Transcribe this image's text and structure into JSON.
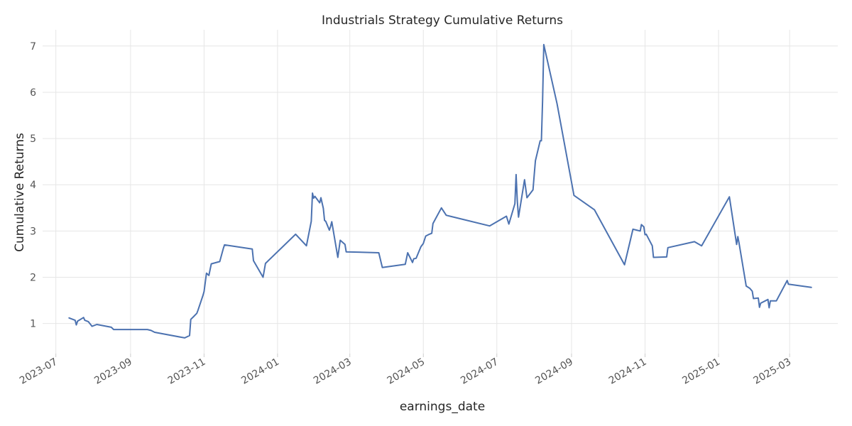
{
  "chart_data": {
    "type": "line",
    "title": "Industrials Strategy Cumulative Returns",
    "xlabel": "earnings_date",
    "ylabel": "Cumulative Returns",
    "xlim": [
      "2023-06-20",
      "2025-04-10"
    ],
    "ylim": [
      0.35,
      7.35
    ],
    "grid": true,
    "x_ticks": [
      "2023-07",
      "2023-09",
      "2023-11",
      "2024-01",
      "2024-03",
      "2024-05",
      "2024-07",
      "2024-09",
      "2024-11",
      "2025-01",
      "2025-03"
    ],
    "y_ticks": [
      1,
      2,
      3,
      4,
      5,
      6,
      7
    ],
    "series": [
      {
        "color": "#4c72b0",
        "x": [
          "2023-07-12",
          "2023-07-17",
          "2023-07-18",
          "2023-07-19",
          "2023-07-24",
          "2023-07-25",
          "2023-07-28",
          "2023-07-31",
          "2023-08-04",
          "2023-08-16",
          "2023-08-18",
          "2023-09-15",
          "2023-09-18",
          "2023-09-21",
          "2023-10-16",
          "2023-10-20",
          "2023-10-21",
          "2023-10-23",
          "2023-10-26",
          "2023-10-27",
          "2023-10-31",
          "2023-11-01",
          "2023-11-03",
          "2023-11-05",
          "2023-11-07",
          "2023-11-14",
          "2023-11-17",
          "2023-11-18",
          "2023-12-11",
          "2023-12-12",
          "2023-12-20",
          "2023-12-22",
          "2024-01-16",
          "2024-01-25",
          "2024-01-29",
          "2024-01-30",
          "2024-01-31",
          "2024-02-01",
          "2024-02-05",
          "2024-02-06",
          "2024-02-08",
          "2024-02-09",
          "2024-02-10",
          "2024-02-13",
          "2024-02-14",
          "2024-02-15",
          "2024-02-20",
          "2024-02-22",
          "2024-02-26",
          "2024-02-27",
          "2024-03-25",
          "2024-03-28",
          "2024-04-16",
          "2024-04-18",
          "2024-04-22",
          "2024-04-23",
          "2024-04-25",
          "2024-04-29",
          "2024-05-01",
          "2024-05-02",
          "2024-05-03",
          "2024-05-06",
          "2024-05-08",
          "2024-05-09",
          "2024-05-16",
          "2024-05-20",
          "2024-06-25",
          "2024-07-09",
          "2024-07-11",
          "2024-07-16",
          "2024-07-17",
          "2024-07-18",
          "2024-07-19",
          "2024-07-24",
          "2024-07-26",
          "2024-07-31",
          "2024-08-01",
          "2024-08-02",
          "2024-08-06",
          "2024-08-07",
          "2024-08-08",
          "2024-08-09",
          "2024-08-20",
          "2024-09-03",
          "2024-09-20",
          "2024-10-15",
          "2024-10-22",
          "2024-10-28",
          "2024-10-29",
          "2024-10-31",
          "2024-11-01",
          "2024-11-02",
          "2024-11-07",
          "2024-11-08",
          "2024-11-19",
          "2024-11-20",
          "2024-12-12",
          "2024-12-18",
          "2025-01-10",
          "2025-01-16",
          "2025-01-17",
          "2025-01-18",
          "2025-01-24",
          "2025-01-27",
          "2025-01-29",
          "2025-01-30",
          "2025-02-03",
          "2025-02-04",
          "2025-02-05",
          "2025-02-11",
          "2025-02-12",
          "2025-02-13",
          "2025-02-18",
          "2025-02-27",
          "2025-02-28",
          "2025-03-19"
        ],
        "values": [
          1.12,
          1.07,
          0.97,
          1.05,
          1.13,
          1.07,
          1.04,
          0.94,
          0.98,
          0.92,
          0.87,
          0.87,
          0.85,
          0.81,
          0.69,
          0.74,
          1.09,
          1.14,
          1.22,
          1.29,
          1.6,
          1.69,
          2.09,
          2.04,
          2.29,
          2.34,
          2.62,
          2.7,
          2.61,
          2.36,
          2.0,
          2.3,
          2.93,
          2.68,
          3.21,
          3.82,
          3.71,
          3.75,
          3.61,
          3.72,
          3.49,
          3.23,
          3.21,
          3.02,
          3.1,
          3.2,
          2.43,
          2.8,
          2.71,
          2.55,
          2.53,
          2.21,
          2.28,
          2.53,
          2.32,
          2.4,
          2.41,
          2.66,
          2.73,
          2.81,
          2.89,
          2.93,
          2.95,
          3.16,
          3.5,
          3.34,
          3.11,
          3.32,
          3.15,
          3.59,
          4.22,
          3.65,
          3.3,
          4.11,
          3.72,
          3.89,
          4.21,
          4.52,
          4.95,
          4.95,
          5.82,
          7.03,
          5.75,
          3.77,
          3.46,
          2.27,
          3.04,
          3.0,
          3.14,
          3.09,
          2.92,
          2.93,
          2.68,
          2.43,
          2.44,
          2.64,
          2.77,
          2.68,
          3.74,
          2.71,
          2.88,
          2.75,
          1.81,
          1.76,
          1.7,
          1.54,
          1.55,
          1.35,
          1.44,
          1.52,
          1.34,
          1.49,
          1.49,
          1.93,
          1.85,
          1.78
        ]
      }
    ]
  }
}
